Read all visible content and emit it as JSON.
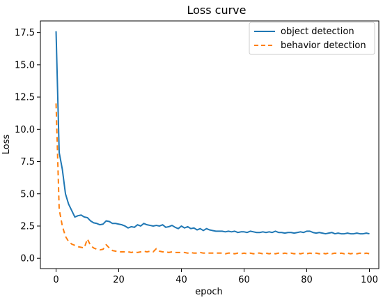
{
  "chart_data": {
    "type": "line",
    "title": "Loss curve",
    "xlabel": "epoch",
    "ylabel": "Loss",
    "xlim": [
      -5,
      103
    ],
    "ylim": [
      -0.8,
      18.4
    ],
    "xticks": [
      0,
      20,
      40,
      60,
      80,
      100
    ],
    "xtick_labels": [
      "0",
      "20",
      "40",
      "60",
      "80",
      "100"
    ],
    "yticks": [
      0.0,
      2.5,
      5.0,
      7.5,
      10.0,
      12.5,
      15.0,
      17.5
    ],
    "ytick_labels": [
      "0.0",
      "2.5",
      "5.0",
      "7.5",
      "10.0",
      "12.5",
      "15.0",
      "17.5"
    ],
    "grid": false,
    "legend_position": "upper right",
    "series": [
      {
        "name": "object detection",
        "color": "#1f77b4",
        "style": "solid",
        "x": [
          0,
          1,
          2,
          3,
          4,
          5,
          6,
          7,
          8,
          9,
          10,
          11,
          12,
          13,
          14,
          15,
          16,
          17,
          18,
          19,
          20,
          21,
          22,
          23,
          24,
          25,
          26,
          27,
          28,
          29,
          30,
          31,
          32,
          33,
          34,
          35,
          36,
          37,
          38,
          39,
          40,
          41,
          42,
          43,
          44,
          45,
          46,
          47,
          48,
          49,
          50,
          51,
          52,
          53,
          54,
          55,
          56,
          57,
          58,
          59,
          60,
          61,
          62,
          63,
          64,
          65,
          66,
          67,
          68,
          69,
          70,
          71,
          72,
          73,
          74,
          75,
          76,
          77,
          78,
          79,
          80,
          81,
          82,
          83,
          84,
          85,
          86,
          87,
          88,
          89,
          90,
          91,
          92,
          93,
          94,
          95,
          96,
          97,
          98,
          99,
          100
        ],
        "values": [
          17.6,
          8.2,
          6.9,
          5.0,
          4.2,
          3.7,
          3.2,
          3.3,
          3.35,
          3.2,
          3.15,
          2.9,
          2.75,
          2.7,
          2.6,
          2.65,
          2.9,
          2.85,
          2.7,
          2.7,
          2.65,
          2.6,
          2.5,
          2.35,
          2.45,
          2.4,
          2.6,
          2.5,
          2.7,
          2.6,
          2.55,
          2.5,
          2.55,
          2.5,
          2.6,
          2.4,
          2.45,
          2.55,
          2.4,
          2.3,
          2.5,
          2.35,
          2.45,
          2.3,
          2.35,
          2.2,
          2.3,
          2.15,
          2.3,
          2.2,
          2.15,
          2.1,
          2.1,
          2.1,
          2.05,
          2.1,
          2.05,
          2.1,
          2.0,
          2.05,
          2.05,
          2.0,
          2.1,
          2.05,
          2.0,
          2.0,
          2.05,
          2.0,
          2.05,
          2.0,
          2.1,
          2.0,
          2.0,
          1.95,
          2.0,
          2.0,
          1.95,
          2.0,
          2.05,
          2.0,
          2.1,
          2.1,
          2.0,
          1.95,
          2.0,
          1.95,
          1.9,
          1.95,
          2.0,
          1.9,
          1.95,
          1.9,
          1.9,
          1.95,
          1.9,
          1.9,
          1.95,
          1.9,
          1.9,
          1.95,
          1.9
        ]
      },
      {
        "name": "behavior detection",
        "color": "#ff7f0e",
        "style": "dashed",
        "x": [
          0,
          1,
          2,
          3,
          4,
          5,
          6,
          7,
          8,
          9,
          10,
          11,
          12,
          13,
          14,
          15,
          16,
          17,
          18,
          19,
          20,
          21,
          22,
          23,
          24,
          25,
          26,
          27,
          28,
          29,
          30,
          31,
          32,
          33,
          34,
          35,
          36,
          37,
          38,
          39,
          40,
          41,
          42,
          43,
          44,
          45,
          46,
          47,
          48,
          49,
          50,
          51,
          52,
          53,
          54,
          55,
          56,
          57,
          58,
          59,
          60,
          61,
          62,
          63,
          64,
          65,
          66,
          67,
          68,
          69,
          70,
          71,
          72,
          73,
          74,
          75,
          76,
          77,
          78,
          79,
          80,
          81,
          82,
          83,
          84,
          85,
          86,
          87,
          88,
          89,
          90,
          91,
          92,
          93,
          94,
          95,
          96,
          97,
          98,
          99,
          100
        ],
        "values": [
          12.0,
          3.8,
          2.5,
          1.7,
          1.3,
          1.1,
          1.0,
          0.9,
          0.85,
          0.8,
          1.5,
          1.0,
          0.8,
          0.7,
          0.65,
          0.7,
          1.05,
          0.8,
          0.6,
          0.55,
          0.5,
          0.5,
          0.5,
          0.5,
          0.45,
          0.5,
          0.45,
          0.5,
          0.55,
          0.5,
          0.55,
          0.5,
          0.75,
          0.55,
          0.5,
          0.5,
          0.45,
          0.5,
          0.45,
          0.45,
          0.45,
          0.45,
          0.4,
          0.45,
          0.4,
          0.4,
          0.45,
          0.4,
          0.4,
          0.4,
          0.4,
          0.4,
          0.4,
          0.4,
          0.35,
          0.4,
          0.4,
          0.35,
          0.4,
          0.35,
          0.4,
          0.35,
          0.4,
          0.35,
          0.4,
          0.4,
          0.35,
          0.4,
          0.35,
          0.4,
          0.35,
          0.4,
          0.35,
          0.4,
          0.35,
          0.4,
          0.35,
          0.4,
          0.35,
          0.4,
          0.35,
          0.4,
          0.35,
          0.4,
          0.35,
          0.4,
          0.35,
          0.4,
          0.35,
          0.4,
          0.35,
          0.4,
          0.35,
          0.4,
          0.35,
          0.4,
          0.35,
          0.4,
          0.35,
          0.4,
          0.35
        ]
      }
    ]
  }
}
